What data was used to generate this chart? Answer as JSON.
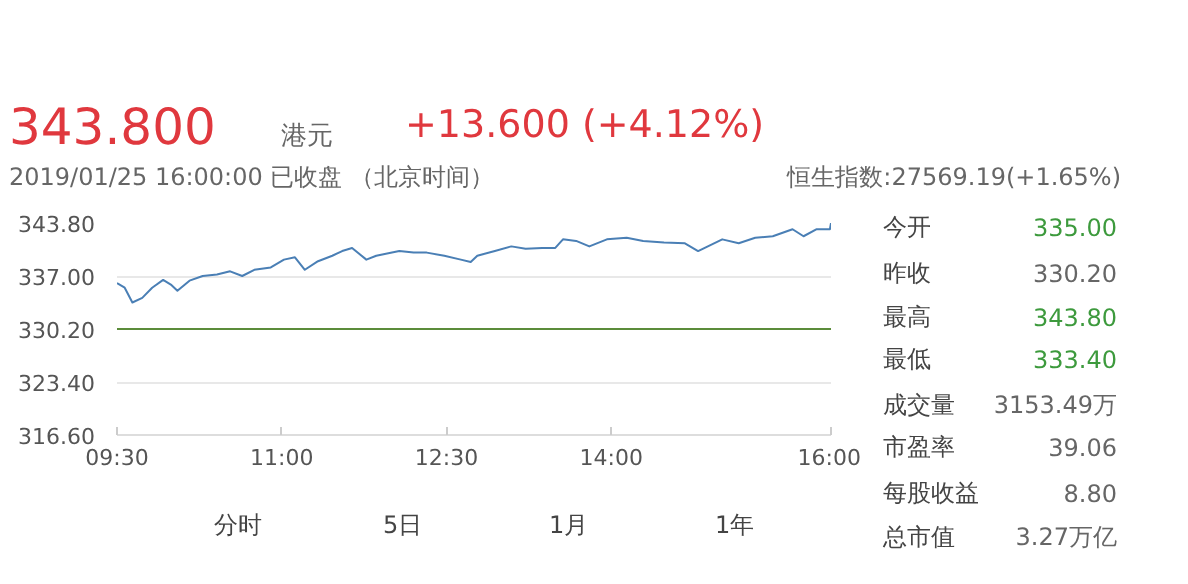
{
  "chart_data": {
    "type": "line",
    "x": [
      9.5,
      9.57,
      9.64,
      9.73,
      9.82,
      9.92,
      9.99,
      10.05,
      10.16,
      10.28,
      10.41,
      10.53,
      10.64,
      10.75,
      10.9,
      11.02,
      11.12,
      11.21,
      11.33,
      11.46,
      11.55,
      11.64,
      11.77,
      11.86,
      12.07,
      12.2,
      12.32,
      12.48,
      12.63,
      12.72,
      12.78,
      12.94,
      13.09,
      13.22,
      13.37,
      13.49,
      13.56,
      13.68,
      13.8,
      13.96,
      14.14,
      14.29,
      14.48,
      14.67,
      14.79,
      15.01,
      15.16,
      15.31,
      15.47,
      15.65,
      15.75,
      15.87,
      15.99,
      16.0
    ],
    "series": [
      {
        "color": "#4a7fb5",
        "values": [
          336.1,
          335.5,
          333.6,
          334.2,
          335.5,
          336.5,
          335.9,
          335.1,
          336.4,
          337.0,
          337.2,
          337.6,
          337.0,
          337.8,
          338.1,
          339.1,
          339.4,
          337.8,
          338.9,
          339.6,
          340.2,
          340.6,
          339.1,
          339.6,
          340.2,
          340.0,
          340.0,
          339.6,
          339.1,
          338.8,
          339.6,
          340.2,
          340.8,
          340.5,
          340.6,
          340.6,
          341.7,
          341.5,
          340.8,
          341.7,
          341.9,
          341.5,
          341.3,
          341.2,
          340.2,
          341.7,
          341.2,
          341.9,
          342.1,
          343.0,
          342.1,
          343.0,
          343.0,
          343.8
        ]
      }
    ],
    "xlim": [
      9.5,
      16
    ],
    "xticks": [
      {
        "value": 9.5,
        "label": "09:30"
      },
      {
        "value": 11,
        "label": "11:00"
      },
      {
        "value": 12.5,
        "label": "12:30"
      },
      {
        "value": 14,
        "label": "14:00"
      },
      {
        "value": 16,
        "label": "16:00"
      }
    ],
    "ylim": [
      316.6,
      343.8
    ],
    "yticks": [
      {
        "value": 316.6,
        "label": "316.60"
      },
      {
        "value": 323.4,
        "label": "323.40"
      },
      {
        "value": 330.2,
        "label": "330.20"
      },
      {
        "value": 337,
        "label": "337.00"
      },
      {
        "value": 343.8,
        "label": "343.80"
      }
    ],
    "ref_lines": [
      {
        "axis": "y",
        "value": 330.2,
        "color": "#5b8c3a"
      }
    ],
    "grid": "y",
    "annotations": [
      "343.800",
      "港元",
      "+13.600 (+4.12%)",
      "2019/01/25 16:00:00  已收盘 （北京时间）",
      "恒生指数:27569.19(+1.65%)",
      "今开",
      "335.00",
      "昨收",
      "330.20",
      "最高",
      "343.80",
      "最低",
      "333.40",
      "成交量",
      "3153.49万",
      "市盈率",
      "39.06",
      "每股收益",
      "8.80",
      "总市值",
      "3.27万亿",
      "分时",
      "5日",
      "1月",
      "1年"
    ]
  }
}
